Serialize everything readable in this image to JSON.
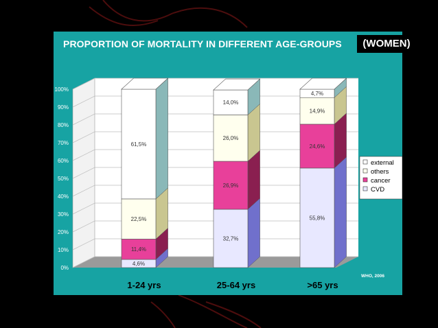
{
  "header": {
    "title": "PROPORTION OF MORTALITY IN DIFFERENT AGE-GROUPS",
    "title_tag": "(WOMEN)"
  },
  "chart_data": {
    "type": "bar",
    "stacked": true,
    "three_d": true,
    "categories": [
      "1-24 yrs",
      "25-64 yrs",
      ">65 yrs"
    ],
    "series": [
      {
        "name": "CVD",
        "values": [
          4.6,
          32.7,
          55.8
        ],
        "labels": [
          "4,6%",
          "32,7%",
          "55,8%"
        ],
        "color": "#e8e8ff"
      },
      {
        "name": "cancer",
        "values": [
          11.4,
          26.9,
          24.6
        ],
        "labels": [
          "11,4%",
          "26,9%",
          "24,6%"
        ],
        "color": "#e8409a"
      },
      {
        "name": "others",
        "values": [
          22.5,
          26.0,
          14.9
        ],
        "labels": [
          "22,5%",
          "26,0%",
          "14,9%"
        ],
        "color": "#ffffee"
      },
      {
        "name": "external",
        "values": [
          61.5,
          14.0,
          4.7
        ],
        "labels": [
          "61,5%",
          "14,0%",
          "4,7%"
        ],
        "color": "#ffffff"
      }
    ],
    "yticks": [
      "0%",
      "10%",
      "20%",
      "30%",
      "40%",
      "50%",
      "60%",
      "70%",
      "80%",
      "90%",
      "100%"
    ],
    "ylim": [
      0,
      100
    ],
    "legend_order": [
      "external",
      "others",
      "cancer",
      "CVD"
    ],
    "legend_position": "right",
    "source_note": "WHO, 2006",
    "grid": true
  },
  "colors": {
    "panel": "#17a3a3",
    "plot_back": "#ffffff",
    "side_shades": {
      "CVD": "#7070cc",
      "cancer": "#8a1f50",
      "others": "#c9c690",
      "external": "#8ab8b8"
    }
  }
}
